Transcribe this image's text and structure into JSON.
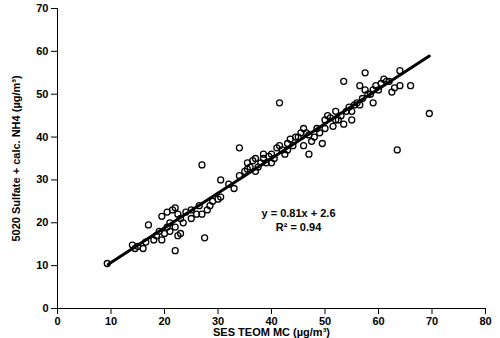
{
  "chart_data": {
    "type": "scatter",
    "x_label": "SES TEOM MC (µg/m³)",
    "y_label": "5020 Sulfate + calc. NH4 (µg/m³)",
    "xlim": [
      0,
      80
    ],
    "xticks": [
      0,
      10,
      20,
      30,
      40,
      50,
      60,
      70,
      80
    ],
    "ylim": [
      0,
      70
    ],
    "yticks": [
      0,
      10,
      20,
      30,
      40,
      50,
      60,
      70
    ],
    "grid": false,
    "color": "#000000",
    "marker": "circle",
    "x": [
      9.3,
      14,
      14.5,
      15,
      16,
      16.5,
      17,
      18,
      18.5,
      19,
      19.5,
      19.5,
      20,
      20.5,
      20.5,
      21,
      21,
      21.5,
      22,
      22,
      22,
      22.5,
      22.5,
      23,
      23,
      23.5,
      24,
      25,
      25,
      26,
      26.5,
      27,
      27,
      27.5,
      28,
      28.5,
      29,
      30,
      30.5,
      30.5,
      32,
      33,
      34,
      34,
      35,
      35.5,
      35.5,
      36,
      36.5,
      37,
      37,
      37.5,
      38,
      38.5,
      38.5,
      39,
      39.5,
      40,
      40,
      40.5,
      41,
      41.5,
      41.5,
      42,
      42.5,
      43,
      43,
      43.5,
      44,
      44.5,
      45,
      45.5,
      46,
      46,
      46.5,
      47,
      47,
      47.5,
      48,
      48.5,
      49,
      49.5,
      50,
      50,
      50.5,
      51,
      51.5,
      52,
      52,
      52.5,
      53,
      53.5,
      53.5,
      54,
      54.5,
      55,
      55,
      55.5,
      56,
      56.5,
      56.5,
      57,
      57.5,
      57.5,
      58,
      58.5,
      59,
      59,
      59.5,
      60,
      60.5,
      61,
      61.5,
      62,
      62.5,
      63,
      63.5,
      64,
      64,
      66,
      69.5
    ],
    "values": [
      10.5,
      14.8,
      14,
      14.5,
      14,
      15.5,
      19.5,
      16,
      17,
      18,
      16,
      21.5,
      17.5,
      19,
      22.5,
      20,
      18,
      23,
      23.5,
      19,
      13.5,
      17,
      22,
      21,
      17.5,
      20,
      22.5,
      23,
      21,
      22,
      24,
      33.5,
      22,
      16.5,
      23,
      24,
      25,
      25.5,
      26,
      30,
      29,
      28,
      37.5,
      31,
      32,
      32.5,
      34,
      33,
      34.5,
      32,
      35,
      33,
      34,
      35,
      36,
      34,
      35.5,
      36,
      34,
      35,
      37.5,
      38,
      48,
      37,
      36,
      37,
      38.5,
      39.5,
      38,
      40,
      40,
      41,
      38,
      42,
      41,
      40.5,
      36,
      39,
      40,
      42,
      41,
      38.5,
      44,
      42,
      45,
      44.5,
      42.5,
      44,
      46,
      44,
      45,
      43,
      53,
      46,
      47,
      46,
      44,
      47.5,
      48,
      47.5,
      52,
      49,
      51,
      55,
      50,
      50,
      51,
      48,
      52,
      51,
      52.5,
      53.5,
      53,
      53,
      50.5,
      51.5,
      37,
      55.5,
      52,
      52,
      45.5
    ],
    "trendline": {
      "x": [
        9.5,
        69.5
      ],
      "values": [
        10.3,
        58.9
      ],
      "color": "#000000",
      "line_style": "solid"
    },
    "annotations": [
      "y = 0.81x + 2.6",
      "R² = 0.94"
    ]
  }
}
